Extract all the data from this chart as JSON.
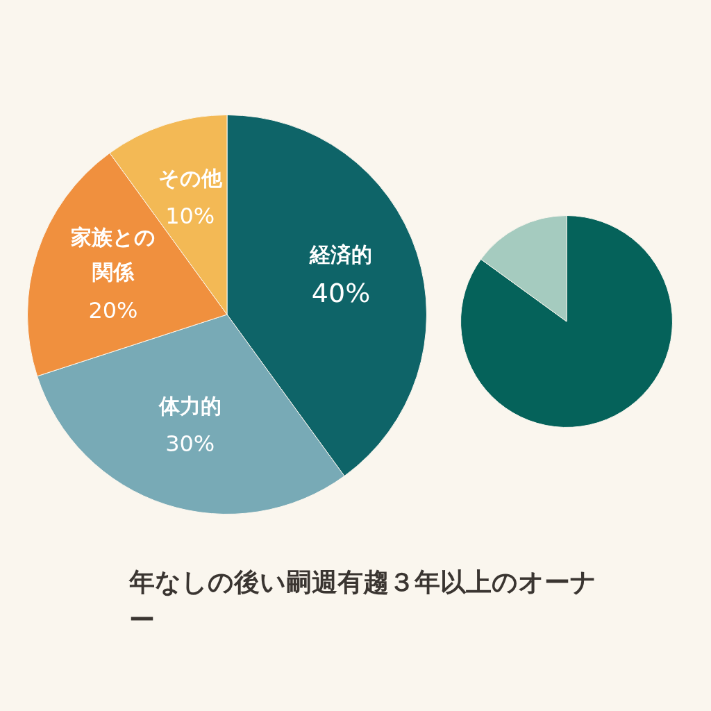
{
  "chart_data": [
    {
      "type": "pie",
      "categories": [
        "経済的",
        "体力的",
        "家族との関係",
        "その他"
      ],
      "values": [
        40,
        30,
        20,
        10
      ],
      "value_labels": [
        "40%",
        "30%",
        "20%",
        "10%"
      ],
      "colors": [
        "#0e6468",
        "#78aab6",
        "#f0903e",
        "#f3b955"
      ],
      "annotations": [
        "年なしの後い嗣週有趨３年以上のオーナー"
      ]
    },
    {
      "type": "pie",
      "categories": [
        null,
        null
      ],
      "values": [
        85,
        15
      ],
      "colors": [
        "#05625a",
        "#a5cbbf"
      ]
    }
  ]
}
